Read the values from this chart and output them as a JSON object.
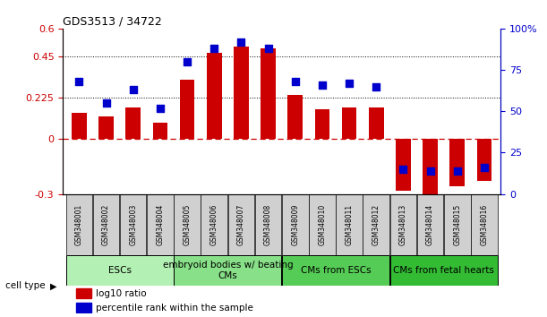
{
  "title": "GDS3513 / 34722",
  "samples": [
    "GSM348001",
    "GSM348002",
    "GSM348003",
    "GSM348004",
    "GSM348005",
    "GSM348006",
    "GSM348007",
    "GSM348008",
    "GSM348009",
    "GSM348010",
    "GSM348011",
    "GSM348012",
    "GSM348013",
    "GSM348014",
    "GSM348015",
    "GSM348016"
  ],
  "log10_ratio": [
    0.14,
    0.12,
    0.17,
    0.09,
    0.32,
    0.47,
    0.5,
    0.49,
    0.24,
    0.16,
    0.17,
    0.17,
    -0.28,
    -0.32,
    -0.26,
    -0.23
  ],
  "percentile_rank": [
    68,
    55,
    63,
    52,
    80,
    88,
    92,
    88,
    68,
    66,
    67,
    65,
    15,
    14,
    14,
    16
  ],
  "cell_type_groups": [
    {
      "label": "ESCs",
      "start": 0,
      "end": 3,
      "color": "#b3f0b3"
    },
    {
      "label": "embryoid bodies w/ beating\nCMs",
      "start": 4,
      "end": 7,
      "color": "#88e088"
    },
    {
      "label": "CMs from ESCs",
      "start": 8,
      "end": 11,
      "color": "#55cc55"
    },
    {
      "label": "CMs from fetal hearts",
      "start": 12,
      "end": 15,
      "color": "#33bb33"
    }
  ],
  "bar_color": "#cc0000",
  "dot_color": "#0000cc",
  "ylim_left": [
    -0.3,
    0.6
  ],
  "ylim_right": [
    0,
    100
  ],
  "yticks_left": [
    -0.3,
    0,
    0.225,
    0.45,
    0.6
  ],
  "ytick_labels_left": [
    "-0.3",
    "0",
    "0.225",
    "0.45",
    "0.6"
  ],
  "yticks_right": [
    0,
    25,
    50,
    75,
    100
  ],
  "ytick_labels_right": [
    "0",
    "25",
    "50",
    "75",
    "100%"
  ],
  "hlines": [
    0.225,
    0.45
  ],
  "zero_line_color": "#cc0000",
  "bar_width": 0.55,
  "dot_size": 28,
  "legend_items": [
    {
      "color": "#cc0000",
      "label": "log10 ratio"
    },
    {
      "color": "#0000cc",
      "label": "percentile rank within the sample"
    }
  ],
  "sample_box_color": "#d0d0d0",
  "xlabel_fontsize": 5.5,
  "ylabel_fontsize": 8,
  "title_fontsize": 9,
  "cell_label_fontsize": 7.5
}
